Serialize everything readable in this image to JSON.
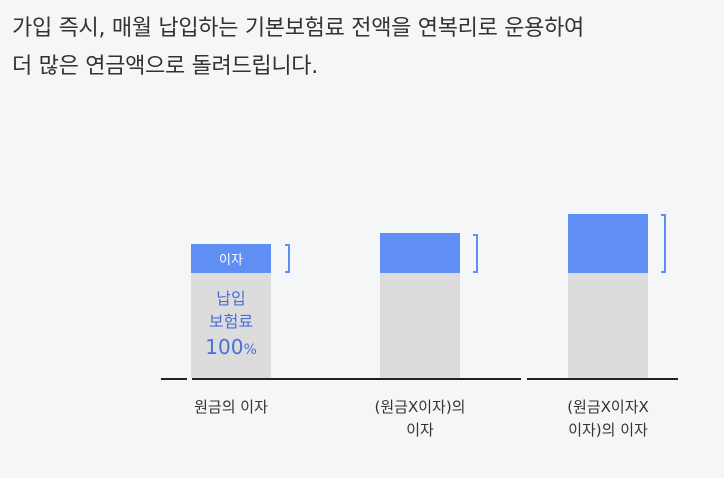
{
  "headline": {
    "line1": "가입 즉시, 매월 납입하는 기본보험료 전액을 연복리로 운용하여",
    "line2": "더 많은 연금액으로 돌려드립니다."
  },
  "chart_data": {
    "type": "bar",
    "categories": [
      "원금의 이자",
      "(원금X이자)의 이자",
      "(원금X이자X 이자)의 이자"
    ],
    "category_lines": [
      [
        "원금의 이자"
      ],
      [
        "(원금X이자)의",
        "이자"
      ],
      [
        "(원금X이자X",
        "이자)의 이자"
      ]
    ],
    "series": [
      {
        "name": "납입 보험료 100%",
        "values": [
          100,
          100,
          100
        ]
      },
      {
        "name": "이자",
        "values": [
          28,
          39,
          58
        ]
      }
    ],
    "interest_label": "이자",
    "premium_label": {
      "line1": "납입",
      "line2": "보험료",
      "value": "100",
      "unit": "%"
    },
    "colors": {
      "premium": "#dcdcdc",
      "interest": "#5f8ef4",
      "premium_text": "#4a6fdc"
    }
  }
}
